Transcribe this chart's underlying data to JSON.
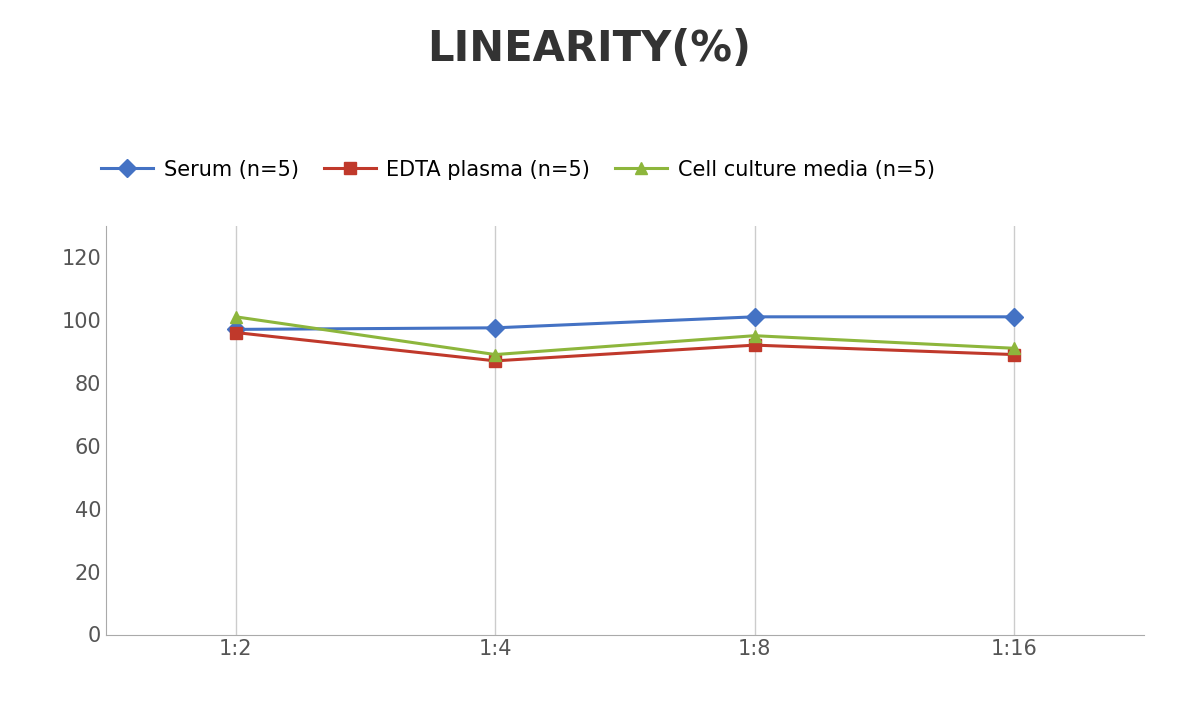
{
  "title": "LINEARITY(%)",
  "x_labels": [
    "1:2",
    "1:4",
    "1:8",
    "1:16"
  ],
  "series": [
    {
      "label": "Serum (n=5)",
      "values": [
        97,
        97.5,
        101,
        101
      ],
      "color": "#4472C4",
      "marker": "D"
    },
    {
      "label": "EDTA plasma (n=5)",
      "values": [
        96,
        87,
        92,
        89
      ],
      "color": "#C0392B",
      "marker": "s"
    },
    {
      "label": "Cell culture media (n=5)",
      "values": [
        101,
        89,
        95,
        91
      ],
      "color": "#8DB63C",
      "marker": "^"
    }
  ],
  "ylim": [
    0,
    130
  ],
  "yticks": [
    0,
    20,
    40,
    60,
    80,
    100,
    120
  ],
  "background_color": "#ffffff",
  "title_fontsize": 30,
  "legend_fontsize": 15,
  "tick_fontsize": 15,
  "linewidth": 2.2,
  "markersize": 9
}
